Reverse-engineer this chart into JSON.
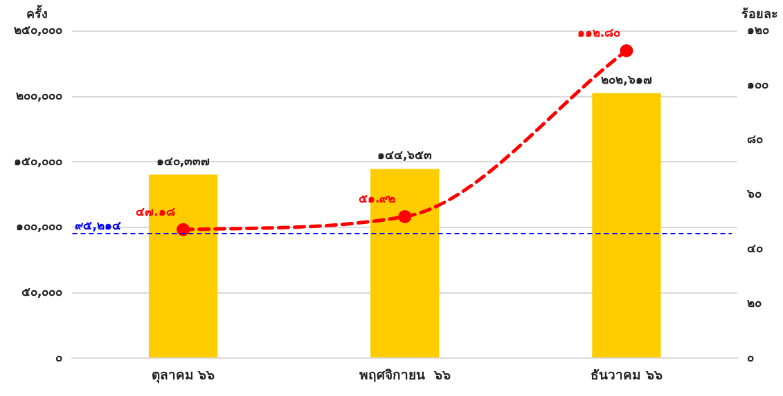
{
  "chart_data": {
    "type": "bar",
    "ylabel": "ครั้ง",
    "y2label": "ร้อยละ",
    "categories": [
      "ตุลาคม ๖๖",
      "พฤศจิกายน  ๖๖",
      "ธันวาคม ๖๖"
    ],
    "series": [
      {
        "color": "#ffcc00",
        "values": [
          140337,
          144653,
          202617
        ],
        "value_labels": [
          "๑๔๐,๓๓๗",
          "๑๔๔,๖๕๓",
          "๒๐๒,๖๑๗"
        ]
      },
      {
        "type": "line",
        "axis": "y2",
        "color": "#ff0000",
        "line_style": "dashed",
        "marker": "circle",
        "values": [
          47.18,
          51.92,
          112.8
        ],
        "value_labels": [
          "๔๗.๑๘",
          "๕๑.๙๒",
          "๑๑๒.๘๐"
        ]
      }
    ],
    "ylim": [
      0,
      250000
    ],
    "yticks": [
      {
        "value": 0,
        "label": "๐"
      },
      {
        "value": 50000,
        "label": "๕๐,๐๐๐"
      },
      {
        "value": 100000,
        "label": "๑๐๐,๐๐๐"
      },
      {
        "value": 150000,
        "label": "๑๕๐,๐๐๐"
      },
      {
        "value": 200000,
        "label": "๒๐๐,๐๐๐"
      },
      {
        "value": 250000,
        "label": "๒๕๐,๐๐๐"
      }
    ],
    "y2lim": [
      0,
      120
    ],
    "y2ticks": [
      {
        "value": 0,
        "label": "๐"
      },
      {
        "value": 20,
        "label": "๒๐"
      },
      {
        "value": 40,
        "label": "๔๐"
      },
      {
        "value": 60,
        "label": "๖๐"
      },
      {
        "value": 80,
        "label": "๘๐"
      },
      {
        "value": 100,
        "label": "๑๐๐"
      },
      {
        "value": 120,
        "label": "๑๒๐"
      }
    ],
    "ref_lines": [
      {
        "axis": "y",
        "value": 95214,
        "label": "๙๕,๒๑๔",
        "color": "#0000ee",
        "line_style": "dashed"
      }
    ],
    "grid": "y",
    "legend": false
  }
}
